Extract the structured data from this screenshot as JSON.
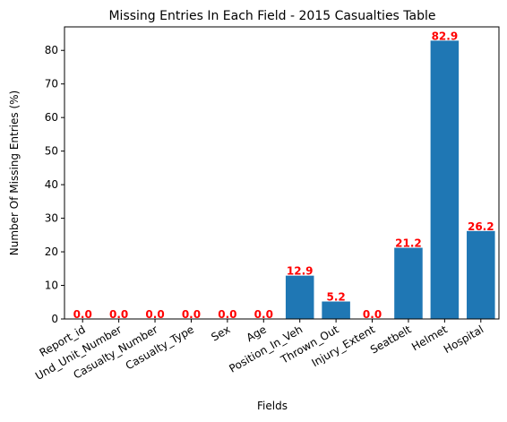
{
  "chart_data": {
    "type": "bar",
    "title": "Missing Entries In Each Field - 2015 Casualties Table",
    "xlabel": "Fields",
    "ylabel": "Number Of Missing Entries (%)",
    "ylim": [
      0,
      87
    ],
    "yticks": [
      0,
      10,
      20,
      30,
      40,
      50,
      60,
      70,
      80
    ],
    "grid": false,
    "categories": [
      "Report_id",
      "Und_Unit_Number",
      "Casualty_Number",
      "Casualty_Type",
      "Sex",
      "Age",
      "Position_In_Veh",
      "Thrown_Out",
      "Injury_Extent",
      "Seatbelt",
      "Helmet",
      "Hospital"
    ],
    "values": [
      0.0,
      0.0,
      0.0,
      0.0,
      0.0,
      0.0,
      12.9,
      5.2,
      0.0,
      21.2,
      82.9,
      26.2
    ],
    "data_labels": [
      "0.0",
      "0.0",
      "0.0",
      "0.0",
      "0.0",
      "0.0",
      "12.9",
      "5.2",
      "0.0",
      "21.2",
      "82.9",
      "26.2"
    ],
    "bar_color": "#1f77b4",
    "label_color": "#ff0000"
  }
}
